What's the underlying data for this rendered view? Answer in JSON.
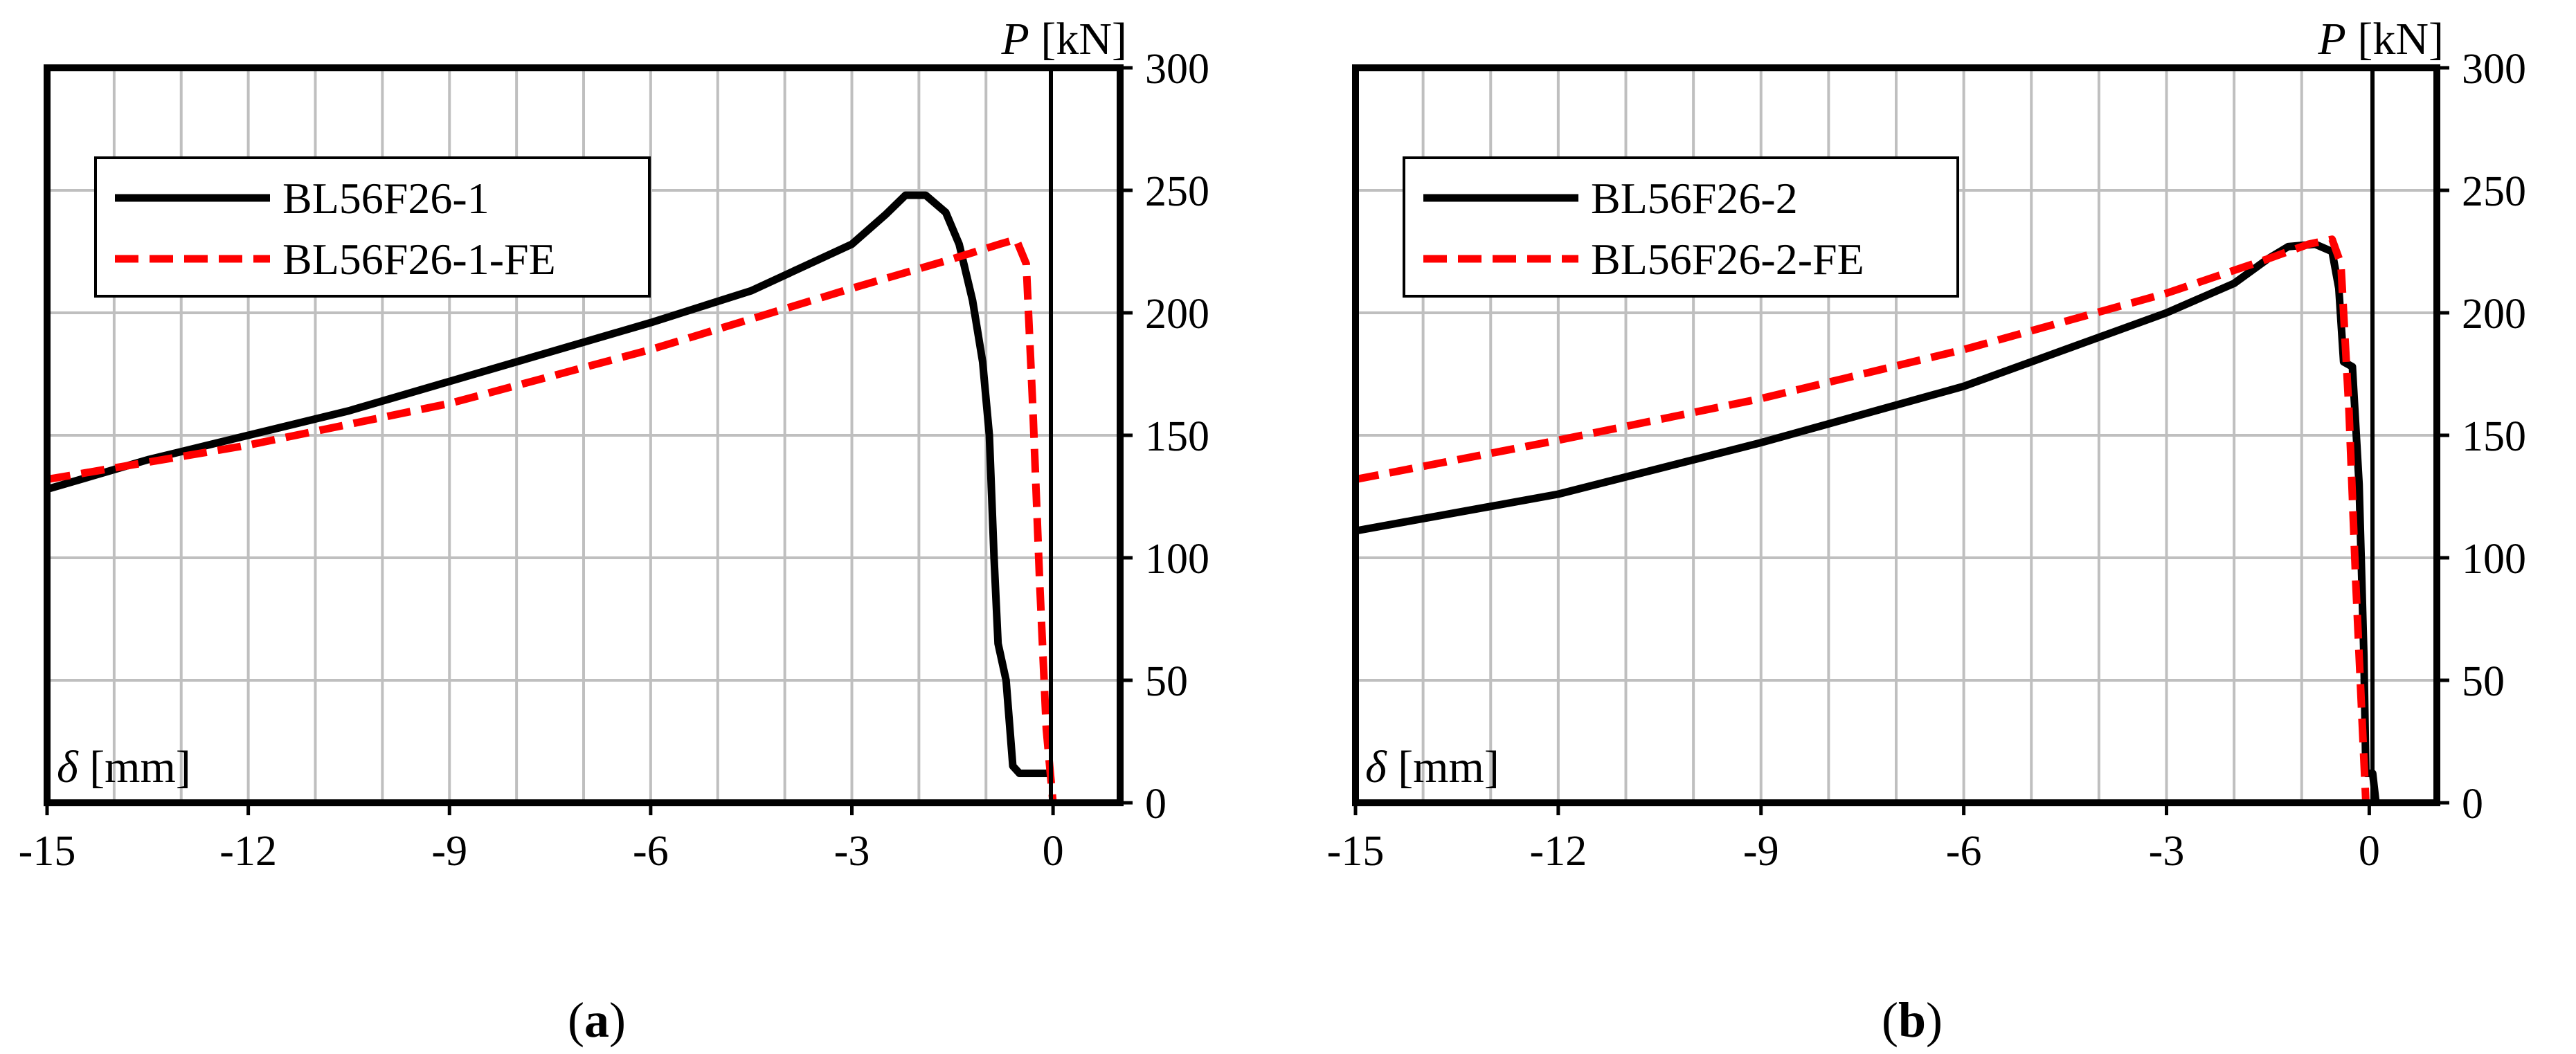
{
  "figure": {
    "panels": [
      "a",
      "b"
    ]
  },
  "chart_data": [
    {
      "type": "line",
      "caption": "a",
      "xlabel_sym": "δ",
      "xlabel_unit": "[mm]",
      "ylabel_sym": "P",
      "ylabel_unit": "[kN]",
      "xlim": [
        -15,
        1
      ],
      "ylim": [
        0,
        300
      ],
      "xticks": [
        -15,
        -12,
        -9,
        -6,
        -3,
        0
      ],
      "yticks": [
        0,
        50,
        100,
        150,
        200,
        250,
        300
      ],
      "legend_position": "top-left",
      "series": [
        {
          "name": "BL56F26-1",
          "color": "#000000",
          "dash": "solid",
          "points": [
            [
              -15,
              128
            ],
            [
              -13.5,
              140
            ],
            [
              -12,
              150
            ],
            [
              -10.5,
              160
            ],
            [
              -9,
              172
            ],
            [
              -7.5,
              184
            ],
            [
              -6,
              196
            ],
            [
              -4.5,
              209
            ],
            [
              -3,
              228
            ],
            [
              -2.5,
              240
            ],
            [
              -2.2,
              248
            ],
            [
              -1.9,
              248
            ],
            [
              -1.6,
              241
            ],
            [
              -1.4,
              228
            ],
            [
              -1.2,
              205
            ],
            [
              -1.05,
              180
            ],
            [
              -0.95,
              150
            ],
            [
              -0.88,
              100
            ],
            [
              -0.82,
              65
            ],
            [
              -0.7,
              50
            ],
            [
              -0.6,
              15
            ],
            [
              -0.5,
              12
            ],
            [
              -0.2,
              12
            ],
            [
              -0.05,
              12
            ]
          ]
        },
        {
          "name": "BL56F26-1-FE",
          "color": "#ff0000",
          "dash": "dashed",
          "points": [
            [
              -15,
              132
            ],
            [
              -12,
              146
            ],
            [
              -9,
              163
            ],
            [
              -6,
              185
            ],
            [
              -3,
              210
            ],
            [
              -1.5,
              222
            ],
            [
              -0.8,
              228
            ],
            [
              -0.55,
              230
            ],
            [
              -0.4,
              220
            ],
            [
              -0.3,
              160
            ],
            [
              -0.2,
              90
            ],
            [
              -0.1,
              30
            ],
            [
              0,
              0
            ]
          ]
        }
      ]
    },
    {
      "type": "line",
      "caption": "b",
      "xlabel_sym": "δ",
      "xlabel_unit": "[mm]",
      "ylabel_sym": "P",
      "ylabel_unit": "[kN]",
      "xlim": [
        -15,
        1
      ],
      "ylim": [
        0,
        300
      ],
      "xticks": [
        -15,
        -12,
        -9,
        -6,
        -3,
        0
      ],
      "yticks": [
        0,
        50,
        100,
        150,
        200,
        250,
        300
      ],
      "legend_position": "top-left",
      "series": [
        {
          "name": "BL56F26-2",
          "color": "#000000",
          "dash": "solid",
          "points": [
            [
              -15,
              111
            ],
            [
              -12,
              126
            ],
            [
              -9,
              147
            ],
            [
              -6,
              170
            ],
            [
              -4.5,
              185
            ],
            [
              -3,
              200
            ],
            [
              -2,
              212
            ],
            [
              -1.5,
              222
            ],
            [
              -1.2,
              227
            ],
            [
              -0.8,
              228
            ],
            [
              -0.55,
              225
            ],
            [
              -0.45,
              210
            ],
            [
              -0.38,
              180
            ],
            [
              -0.25,
              178
            ],
            [
              -0.15,
              130
            ],
            [
              -0.08,
              60
            ],
            [
              -0.05,
              12
            ],
            [
              0.05,
              12
            ],
            [
              0.1,
              0
            ]
          ]
        },
        {
          "name": "BL56F26-2-FE",
          "color": "#ff0000",
          "dash": "dashed",
          "points": [
            [
              -15,
              132
            ],
            [
              -12,
              148
            ],
            [
              -9,
              165
            ],
            [
              -6,
              185
            ],
            [
              -3,
              208
            ],
            [
              -1.5,
              222
            ],
            [
              -0.9,
              228
            ],
            [
              -0.55,
              230
            ],
            [
              -0.42,
              220
            ],
            [
              -0.3,
              160
            ],
            [
              -0.2,
              90
            ],
            [
              -0.1,
              30
            ],
            [
              -0.05,
              0
            ]
          ]
        }
      ]
    }
  ]
}
